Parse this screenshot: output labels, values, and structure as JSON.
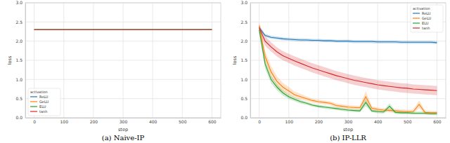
{
  "chart_data": [
    {
      "type": "line",
      "title": "(a) Naive-IP",
      "x_label": "step",
      "y_label": "loss",
      "x": [
        0,
        100,
        200,
        300,
        400,
        500,
        600
      ],
      "xlim": [
        -30,
        630
      ],
      "xticks": [
        0,
        100,
        200,
        300,
        400,
        500,
        600
      ],
      "ylim": [
        0,
        3
      ],
      "yticks": [
        {
          "value": 0,
          "label": "0.0"
        },
        {
          "value": 0.5,
          "label": "0.5"
        },
        {
          "value": 1,
          "label": "1.0"
        },
        {
          "value": 1.5,
          "label": "1.5"
        },
        {
          "value": 2,
          "label": "2.0"
        },
        {
          "value": 2.5,
          "label": "2.5"
        },
        {
          "value": 3,
          "label": "3.0"
        }
      ],
      "grid": true,
      "legend": "lower left",
      "legend_title": "activation",
      "series": [
        {
          "name": "ReLU",
          "color": "#1f77b4",
          "values": [
            2.3,
            2.3,
            2.3,
            2.3,
            2.3,
            2.3,
            2.3
          ]
        },
        {
          "name": "GeLU",
          "color": "#ff7f0e",
          "values": [
            2.3,
            2.3,
            2.3,
            2.3,
            2.3,
            2.3,
            2.3
          ]
        },
        {
          "name": "ELU",
          "color": "#2ca02c",
          "values": [
            2.3,
            2.3,
            2.3,
            2.3,
            2.3,
            2.3,
            2.3
          ]
        },
        {
          "name": "tanh",
          "color": "#d62728",
          "values": [
            2.3,
            2.3,
            2.3,
            2.3,
            2.3,
            2.3,
            2.3
          ]
        }
      ]
    },
    {
      "type": "line",
      "title": "(b) IP-LLR",
      "x_label": "step",
      "y_label": "loss",
      "x": [
        0,
        20,
        40,
        60,
        80,
        100,
        120,
        140,
        160,
        180,
        200,
        220,
        240,
        260,
        280,
        300,
        320,
        340,
        360,
        380,
        400,
        420,
        440,
        460,
        480,
        500,
        520,
        540,
        560,
        580,
        600
      ],
      "xlim": [
        -30,
        630
      ],
      "xticks": [
        0,
        100,
        200,
        300,
        400,
        500,
        600
      ],
      "ylim": [
        0,
        3
      ],
      "yticks": [
        {
          "value": 0,
          "label": "0.0"
        },
        {
          "value": 0.5,
          "label": "0.5"
        },
        {
          "value": 1,
          "label": "1.0"
        },
        {
          "value": 1.5,
          "label": "1.5"
        },
        {
          "value": 2,
          "label": "2.0"
        },
        {
          "value": 2.5,
          "label": "2.5"
        },
        {
          "value": 3,
          "label": "3.0"
        }
      ],
      "grid": true,
      "legend": "upper right",
      "legend_title": "activation",
      "series": [
        {
          "name": "ReLU",
          "color": "#1f77b4",
          "values": [
            2.35,
            2.15,
            2.1,
            2.08,
            2.06,
            2.05,
            2.04,
            2.03,
            2.03,
            2.02,
            2.02,
            2.01,
            2.01,
            2.0,
            2.0,
            2.0,
            1.99,
            1.99,
            1.99,
            1.99,
            1.98,
            1.98,
            1.98,
            1.98,
            1.97,
            1.97,
            1.97,
            1.97,
            1.97,
            1.97,
            1.96
          ],
          "lower": [
            2.31,
            2.11,
            2.06,
            2.04,
            2.02,
            2.01,
            2.0,
            1.99,
            1.99,
            1.98,
            1.98,
            1.97,
            1.97,
            1.96,
            1.96,
            1.96,
            1.95,
            1.95,
            1.95,
            1.95,
            1.94,
            1.94,
            1.94,
            1.94,
            1.93,
            1.93,
            1.93,
            1.93,
            1.93,
            1.93,
            1.92
          ],
          "upper": [
            2.39,
            2.19,
            2.14,
            2.12,
            2.1,
            2.09,
            2.08,
            2.07,
            2.07,
            2.06,
            2.06,
            2.05,
            2.05,
            2.04,
            2.04,
            2.04,
            2.03,
            2.03,
            2.03,
            2.03,
            2.02,
            2.02,
            2.02,
            2.02,
            2.01,
            2.01,
            2.01,
            2.01,
            2.01,
            2.01,
            2.0
          ]
        },
        {
          "name": "GeLU",
          "color": "#ff7f0e",
          "values": [
            2.4,
            1.6,
            1.2,
            0.95,
            0.8,
            0.7,
            0.6,
            0.55,
            0.5,
            0.45,
            0.42,
            0.4,
            0.38,
            0.32,
            0.3,
            0.28,
            0.27,
            0.26,
            0.55,
            0.25,
            0.22,
            0.2,
            0.19,
            0.18,
            0.17,
            0.16,
            0.16,
            0.35,
            0.14,
            0.13,
            0.13
          ],
          "lower": [
            2.3,
            1.45,
            1.05,
            0.82,
            0.69,
            0.6,
            0.52,
            0.48,
            0.44,
            0.4,
            0.37,
            0.35,
            0.33,
            0.27,
            0.25,
            0.23,
            0.22,
            0.21,
            0.4,
            0.2,
            0.17,
            0.15,
            0.14,
            0.13,
            0.12,
            0.11,
            0.11,
            0.25,
            0.09,
            0.08,
            0.08
          ],
          "upper": [
            2.5,
            1.75,
            1.35,
            1.08,
            0.91,
            0.8,
            0.68,
            0.62,
            0.56,
            0.5,
            0.47,
            0.45,
            0.43,
            0.37,
            0.35,
            0.33,
            0.32,
            0.31,
            0.7,
            0.3,
            0.27,
            0.25,
            0.24,
            0.23,
            0.22,
            0.21,
            0.21,
            0.45,
            0.19,
            0.18,
            0.18
          ]
        },
        {
          "name": "ELU",
          "color": "#2ca02c",
          "values": [
            2.3,
            1.4,
            1.0,
            0.8,
            0.65,
            0.55,
            0.48,
            0.42,
            0.38,
            0.33,
            0.3,
            0.28,
            0.26,
            0.24,
            0.22,
            0.2,
            0.19,
            0.18,
            0.4,
            0.18,
            0.16,
            0.15,
            0.3,
            0.14,
            0.13,
            0.13,
            0.12,
            0.12,
            0.12,
            0.11,
            0.11
          ],
          "lower": [
            2.2,
            1.28,
            0.9,
            0.72,
            0.58,
            0.49,
            0.43,
            0.37,
            0.34,
            0.29,
            0.26,
            0.24,
            0.22,
            0.2,
            0.18,
            0.16,
            0.15,
            0.14,
            0.3,
            0.14,
            0.12,
            0.11,
            0.22,
            0.1,
            0.09,
            0.09,
            0.08,
            0.08,
            0.08,
            0.07,
            0.07
          ],
          "upper": [
            2.4,
            1.52,
            1.1,
            0.88,
            0.72,
            0.61,
            0.53,
            0.47,
            0.42,
            0.37,
            0.34,
            0.32,
            0.3,
            0.28,
            0.26,
            0.24,
            0.23,
            0.22,
            0.5,
            0.22,
            0.2,
            0.19,
            0.38,
            0.18,
            0.17,
            0.17,
            0.16,
            0.16,
            0.16,
            0.15,
            0.15
          ]
        },
        {
          "name": "tanh",
          "color": "#d62728",
          "values": [
            2.35,
            2.0,
            1.85,
            1.72,
            1.62,
            1.55,
            1.48,
            1.42,
            1.36,
            1.3,
            1.25,
            1.2,
            1.15,
            1.1,
            1.06,
            1.02,
            0.98,
            0.95,
            0.92,
            0.89,
            0.86,
            0.84,
            0.82,
            0.8,
            0.78,
            0.77,
            0.75,
            0.74,
            0.73,
            0.72,
            0.71
          ],
          "lower": [
            2.25,
            1.88,
            1.73,
            1.6,
            1.5,
            1.43,
            1.36,
            1.3,
            1.24,
            1.18,
            1.13,
            1.08,
            1.03,
            0.98,
            0.94,
            0.9,
            0.86,
            0.83,
            0.8,
            0.77,
            0.74,
            0.72,
            0.7,
            0.68,
            0.66,
            0.65,
            0.63,
            0.62,
            0.61,
            0.6,
            0.59
          ],
          "upper": [
            2.45,
            2.12,
            1.97,
            1.84,
            1.74,
            1.67,
            1.6,
            1.54,
            1.48,
            1.42,
            1.37,
            1.32,
            1.27,
            1.22,
            1.18,
            1.14,
            1.1,
            1.07,
            1.04,
            1.01,
            0.98,
            0.96,
            0.94,
            0.92,
            0.9,
            0.89,
            0.87,
            0.86,
            0.85,
            0.84,
            0.83
          ]
        }
      ]
    }
  ]
}
